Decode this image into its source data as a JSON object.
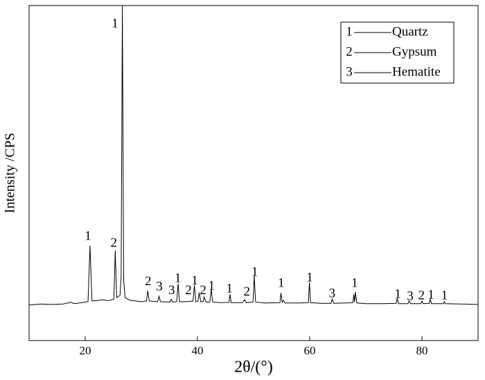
{
  "chart_data": {
    "type": "line",
    "xlabel": "2θ/(°)",
    "ylabel": "Intensity /CPS",
    "xlim": [
      10,
      90
    ],
    "ylim": [
      0,
      100
    ],
    "xticks": [
      20,
      40,
      60,
      80
    ],
    "color": "#000000",
    "x": [
      10,
      12,
      14,
      16,
      17.5,
      18,
      19,
      20.5,
      20.85,
      21.2,
      22,
      23,
      24,
      25.1,
      25.35,
      25.6,
      26.2,
      26.4,
      26.62,
      26.85,
      27.1,
      28,
      30,
      30.9,
      31.15,
      31.4,
      32.9,
      33.15,
      33.4,
      35.1,
      35.3,
      35.6,
      36.3,
      36.55,
      36.8,
      38,
      39.2,
      39.45,
      39.7,
      40.1,
      40.3,
      40.6,
      41.0,
      41.2,
      41.5,
      42.2,
      42.45,
      42.7,
      44,
      45.6,
      45.8,
      46.0,
      48,
      48.4,
      48.7,
      49.9,
      50.12,
      50.35,
      52,
      54.7,
      54.87,
      55.1,
      55.3,
      55.6,
      58,
      59.75,
      59.95,
      60.15,
      62,
      63.8,
      64.0,
      64.3,
      67.7,
      67.85,
      68.0,
      68.15,
      68.4,
      70,
      73,
      75.4,
      75.6,
      75.8,
      77.5,
      77.7,
      78,
      79.8,
      80.0,
      80.2,
      81.3,
      81.5,
      81.7,
      83.8,
      84,
      84.2,
      87,
      90
    ],
    "values": [
      10.6,
      10.9,
      10.8,
      10.9,
      11.4,
      11,
      11.2,
      11.6,
      28.3,
      11.8,
      11.9,
      12.2,
      11.9,
      12.3,
      26.9,
      12.8,
      13.5,
      19,
      100,
      18,
      12.8,
      12,
      11.6,
      11.8,
      14.9,
      11.8,
      11.6,
      13.2,
      11.6,
      11.5,
      12.3,
      11.5,
      11.6,
      17,
      11.6,
      11.6,
      11.8,
      16.5,
      11.6,
      11.7,
      14.3,
      11.6,
      11.6,
      13,
      11.5,
      11.5,
      15.3,
      11.5,
      11.3,
      11.4,
      13.8,
      11.3,
      11.3,
      12.2,
      11.3,
      11.5,
      19.4,
      11.5,
      11.2,
      11.3,
      14.2,
      11.4,
      12,
      11.2,
      11.2,
      11.3,
      17.4,
      11.3,
      11.1,
      11.1,
      12.4,
      11.1,
      11.3,
      13.8,
      11.5,
      14.5,
      11.2,
      11,
      11.0,
      11.1,
      12.6,
      11.0,
      11.0,
      11.8,
      11.0,
      11.0,
      11.8,
      11.0,
      11.1,
      12.3,
      11.0,
      11.0,
      11.6,
      11,
      10.9,
      10.8
    ],
    "annotations": [
      {
        "text": "1",
        "x": 20.5,
        "y": 31
      },
      {
        "text": "2",
        "x": 25.1,
        "y": 28.9
      },
      {
        "text": "1",
        "x": 25.3,
        "y": 94.4
      },
      {
        "text": "2",
        "x": 31.2,
        "y": 17.4
      },
      {
        "text": "3",
        "x": 33.2,
        "y": 15.9
      },
      {
        "text": "3",
        "x": 35.4,
        "y": 14.7
      },
      {
        "text": "1",
        "x": 36.5,
        "y": 18.4
      },
      {
        "text": "2",
        "x": 38.4,
        "y": 14.7
      },
      {
        "text": "1",
        "x": 39.5,
        "y": 17.6
      },
      {
        "text": "2",
        "x": 41,
        "y": 14.7
      },
      {
        "text": "1",
        "x": 42.5,
        "y": 16.1
      },
      {
        "text": "1",
        "x": 45.7,
        "y": 15.3
      },
      {
        "text": "2",
        "x": 48.8,
        "y": 14.3
      },
      {
        "text": "1",
        "x": 50.2,
        "y": 20.2
      },
      {
        "text": "1",
        "x": 54.9,
        "y": 16.9
      },
      {
        "text": "1",
        "x": 60,
        "y": 18.6
      },
      {
        "text": "3",
        "x": 64,
        "y": 13.8
      },
      {
        "text": "1",
        "x": 68,
        "y": 16.9
      },
      {
        "text": "1",
        "x": 75.7,
        "y": 13.6
      },
      {
        "text": "3",
        "x": 77.9,
        "y": 13
      },
      {
        "text": "2",
        "x": 79.9,
        "y": 13.2
      },
      {
        "text": "1",
        "x": 81.6,
        "y": 13.4
      },
      {
        "text": "1",
        "x": 84,
        "y": 13.2
      }
    ],
    "legend": [
      {
        "label": "1",
        "name": "Quartz"
      },
      {
        "label": "2",
        "name": "Gypsum"
      },
      {
        "label": "3",
        "name": "Hematite"
      }
    ]
  }
}
